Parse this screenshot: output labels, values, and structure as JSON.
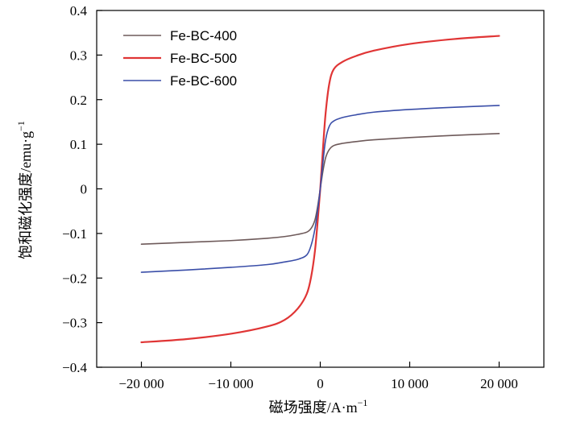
{
  "chart_data": {
    "type": "line",
    "title": "",
    "xlabel": "磁场强度/A·m",
    "xlabel_superscript": "−1",
    "ylabel": "饱和磁化强度/emu·g",
    "ylabel_superscript": "−1",
    "xlim": [
      -25000,
      25000
    ],
    "ylim": [
      -0.4,
      0.4
    ],
    "x_ticks": [
      -20000,
      -10000,
      0,
      10000,
      20000
    ],
    "x_tick_labels": [
      "−20 000",
      "−10 000",
      "0",
      "10 000",
      "20 000"
    ],
    "y_ticks": [
      -0.4,
      -0.3,
      -0.2,
      -0.1,
      0,
      0.1,
      0.2,
      0.3,
      0.4
    ],
    "y_tick_labels": [
      "−0.4",
      "−0.3",
      "−0.2",
      "−0.1",
      "0",
      "0.1",
      "0.2",
      "0.3",
      "0.4"
    ],
    "grid": false,
    "legend_position": "top-left",
    "series": [
      {
        "name": "Fe-BC-400",
        "color": "#6e5a5a",
        "x": [
          -20000,
          -15000,
          -10000,
          -6000,
          -4000,
          -2500,
          -1500,
          -1000,
          -600,
          -300,
          0,
          300,
          600,
          1000,
          1500,
          2500,
          4000,
          6000,
          10000,
          15000,
          20000
        ],
        "y": [
          -0.124,
          -0.12,
          -0.116,
          -0.111,
          -0.107,
          -0.102,
          -0.097,
          -0.088,
          -0.07,
          -0.04,
          0,
          0.04,
          0.07,
          0.088,
          0.097,
          0.102,
          0.106,
          0.11,
          0.115,
          0.12,
          0.124
        ]
      },
      {
        "name": "Fe-BC-500",
        "color": "#e03535",
        "x": [
          -20000,
          -15000,
          -10000,
          -6000,
          -4000,
          -2500,
          -1500,
          -1000,
          -600,
          -300,
          0,
          300,
          600,
          1000,
          1500,
          2500,
          4000,
          6000,
          10000,
          15000,
          20000
        ],
        "y": [
          -0.344,
          -0.337,
          -0.325,
          -0.309,
          -0.294,
          -0.268,
          -0.235,
          -0.195,
          -0.14,
          -0.075,
          0,
          0.09,
          0.17,
          0.235,
          0.268,
          0.285,
          0.298,
          0.31,
          0.325,
          0.336,
          0.343
        ]
      },
      {
        "name": "Fe-BC-600",
        "color": "#3a4ea8",
        "x": [
          -20000,
          -15000,
          -10000,
          -6000,
          -4000,
          -2500,
          -1500,
          -1000,
          -600,
          -300,
          0,
          300,
          600,
          1000,
          1500,
          2500,
          4000,
          6000,
          10000,
          15000,
          20000
        ],
        "y": [
          -0.187,
          -0.182,
          -0.176,
          -0.17,
          -0.164,
          -0.158,
          -0.148,
          -0.125,
          -0.09,
          -0.05,
          0,
          0.06,
          0.11,
          0.14,
          0.152,
          0.16,
          0.166,
          0.172,
          0.178,
          0.183,
          0.187
        ]
      }
    ]
  }
}
